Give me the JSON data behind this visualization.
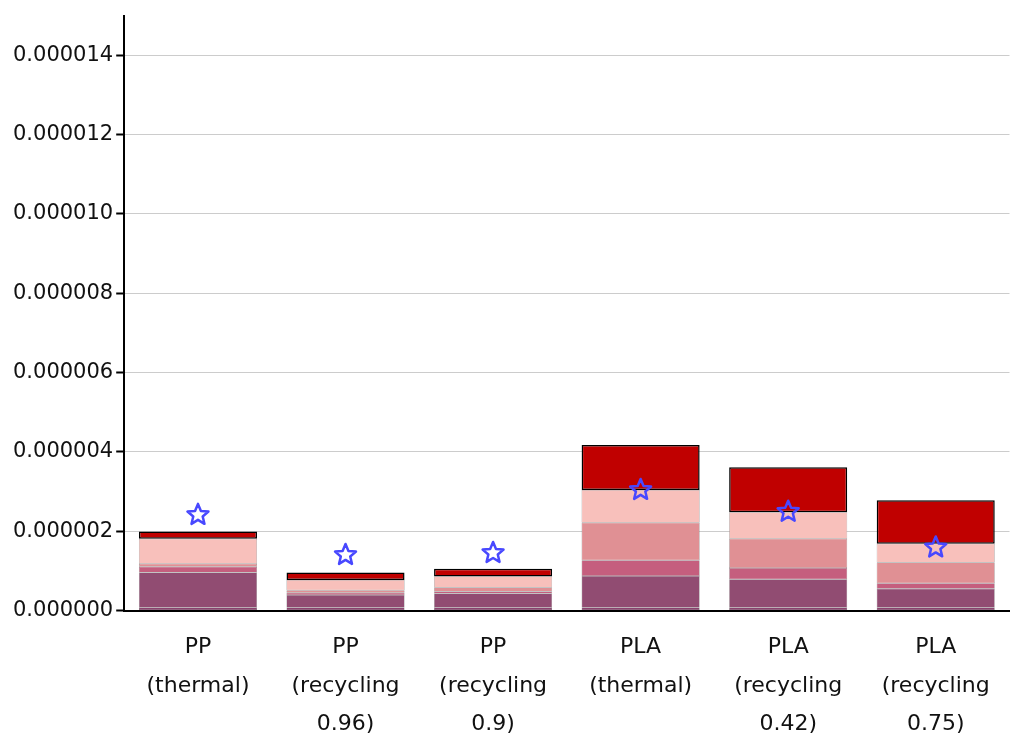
{
  "chart_data": {
    "type": "bar",
    "stacked": true,
    "categories": [
      "PP (thermal)",
      "PP (recycling 0.96)",
      "PP (recycling 0.9)",
      "PLA (thermal)",
      "PLA (recycling 0.42)",
      "PLA (recycling 0.75)"
    ],
    "series": [
      {
        "color": "#6e0c48",
        "values": [
          7e-08,
          7e-08,
          7e-08,
          7e-08,
          7e-08,
          7e-08
        ]
      },
      {
        "color": "#914c72",
        "values": [
          8.9e-07,
          3.2e-07,
          3.6e-07,
          8e-07,
          7.2e-07,
          4.8e-07
        ]
      },
      {
        "color": "#c55e7e",
        "values": [
          1.4e-07,
          6e-08,
          5e-08,
          4e-07,
          2.8e-07,
          1.4e-07
        ]
      },
      {
        "color": "#e09094",
        "values": [
          8e-08,
          6e-08,
          1e-07,
          9.4e-07,
          7.4e-07,
          5.2e-07
        ]
      },
      {
        "color": "#f8c0bb",
        "values": [
          6.3e-07,
          2.6e-07,
          2.8e-07,
          8.3e-07,
          6.7e-07,
          4.7e-07
        ]
      },
      {
        "color": "#c00000",
        "values": [
          1.8e-07,
          1.9e-07,
          1.9e-07,
          1.13e-06,
          1.13e-06,
          1.1e-06
        ]
      },
      {
        "type": "scatter",
        "color": "#4848ff",
        "marker": "star",
        "x": [
          "PP (thermal)",
          "PP (recycling 0.96)",
          "PP (recycling 0.9)",
          "PLA (thermal)",
          "PLA (recycling 0.42)",
          "PLA (recycling 0.75)"
        ],
        "values": [
          2.41e-06,
          1.4e-06,
          1.45e-06,
          3.04e-06,
          2.49e-06,
          1.59e-06
        ]
      }
    ],
    "ylim": [
      0,
      1.5e-05
    ],
    "yticks": [
      {
        "value": 0,
        "label": "0.000000"
      },
      {
        "value": 2e-06,
        "label": "0.000002"
      },
      {
        "value": 4e-06,
        "label": "0.000004"
      },
      {
        "value": 6e-06,
        "label": "0.000006"
      },
      {
        "value": 8e-06,
        "label": "0.000008"
      },
      {
        "value": 1e-05,
        "label": "0.000010"
      },
      {
        "value": 1.2e-05,
        "label": "0.000012"
      },
      {
        "value": 1.4e-05,
        "label": "0.000014"
      }
    ],
    "grid": "y",
    "legend": false
  }
}
